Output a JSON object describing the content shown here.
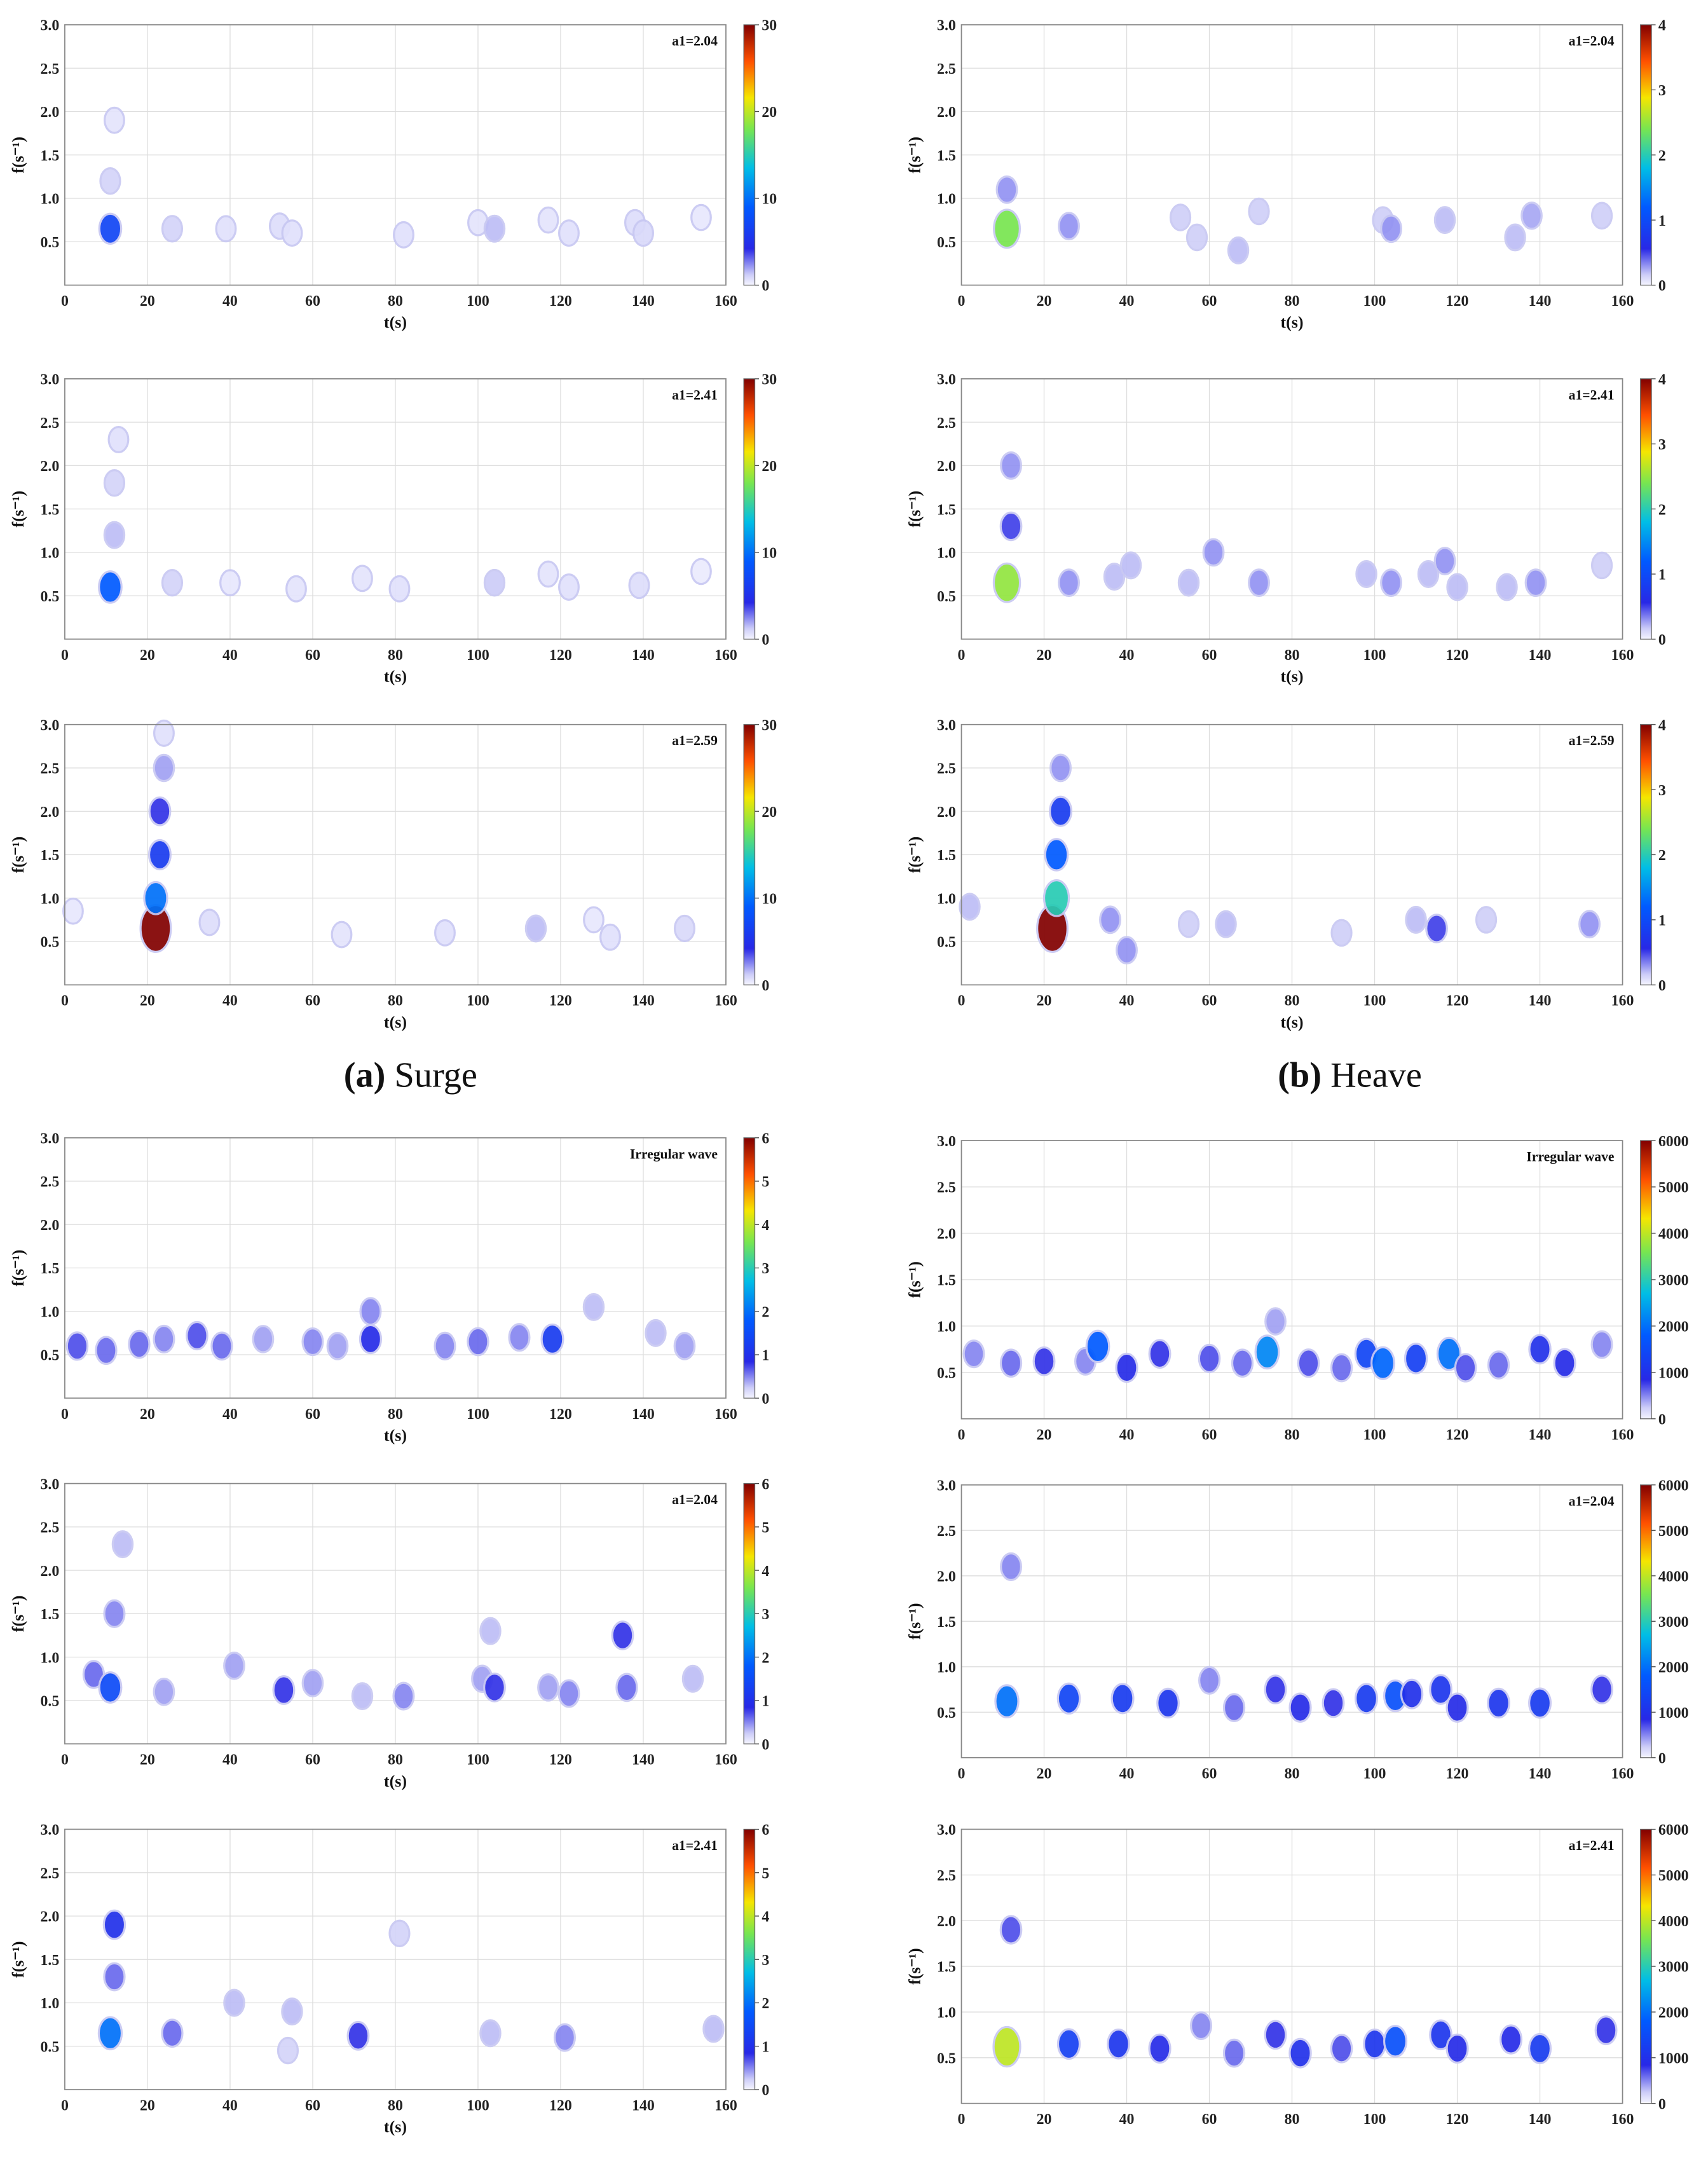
{
  "captions": [
    {
      "tag": "(a)",
      "name": "Surge"
    },
    {
      "tag": "(b)",
      "name": "Heave"
    }
  ],
  "chart_data": [
    {
      "type": "contour",
      "annotation": "a1=2.04",
      "xlabel": "t(s)",
      "ylabel": "f(s⁻¹)",
      "colormap": "jet",
      "grid": true,
      "xlim": [
        0,
        160
      ],
      "xticks": [
        0,
        20,
        40,
        60,
        80,
        100,
        120,
        140,
        160
      ],
      "ylim": [
        0,
        3
      ],
      "yticks": [
        0.5,
        {
          "value": 1,
          "label": "1.0"
        },
        1.5,
        {
          "value": 2,
          "label": "2.0"
        },
        2.5,
        {
          "value": 3,
          "label": "3.0"
        }
      ],
      "clim": [
        0,
        30
      ],
      "cticks": [
        0,
        10,
        20,
        30
      ],
      "x": [
        11,
        11,
        12,
        26,
        39,
        52,
        55,
        82,
        100,
        104,
        117,
        122,
        138,
        140,
        154
      ],
      "y": [
        0.65,
        1.2,
        1.9,
        0.65,
        0.65,
        0.68,
        0.6,
        0.58,
        0.72,
        0.65,
        0.75,
        0.6,
        0.72,
        0.6,
        0.78
      ],
      "values": [
        7,
        1,
        0.5,
        1,
        0.6,
        0.7,
        0.6,
        0.6,
        0.5,
        1.5,
        0.5,
        0.6,
        0.7,
        0.8,
        0.4
      ]
    },
    {
      "type": "contour",
      "annotation": "a1=2.41",
      "xlabel": "t(s)",
      "ylabel": "f(s⁻¹)",
      "colormap": "jet",
      "grid": true,
      "xlim": [
        0,
        160
      ],
      "xticks": [
        0,
        20,
        40,
        60,
        80,
        100,
        120,
        140,
        160
      ],
      "ylim": [
        0,
        3
      ],
      "yticks": [
        0.5,
        {
          "value": 1,
          "label": "1.0"
        },
        1.5,
        {
          "value": 2,
          "label": "2.0"
        },
        2.5,
        {
          "value": 3,
          "label": "3.0"
        }
      ],
      "clim": [
        0,
        30
      ],
      "cticks": [
        0,
        10,
        20,
        30
      ],
      "x": [
        11,
        12,
        12,
        13,
        26,
        40,
        56,
        72,
        81,
        104,
        117,
        122,
        139,
        154
      ],
      "y": [
        0.6,
        1.2,
        1.8,
        2.3,
        0.65,
        0.65,
        0.58,
        0.7,
        0.58,
        0.65,
        0.75,
        0.6,
        0.62,
        0.78
      ],
      "values": [
        9,
        1.5,
        1,
        0.6,
        1,
        0.4,
        0.5,
        0.5,
        0.6,
        1.2,
        0.5,
        0.6,
        0.7,
        0.3
      ]
    },
    {
      "type": "contour",
      "annotation": "a1=2.59",
      "xlabel": "t(s)",
      "ylabel": "f(s⁻¹)",
      "colormap": "jet",
      "grid": true,
      "xlim": [
        0,
        160
      ],
      "xticks": [
        0,
        20,
        40,
        60,
        80,
        100,
        120,
        140,
        160
      ],
      "ylim": [
        0,
        3
      ],
      "yticks": [
        0.5,
        {
          "value": 1,
          "label": "1.0"
        },
        1.5,
        {
          "value": 2,
          "label": "2.0"
        },
        2.5,
        {
          "value": 3,
          "label": "3.0"
        }
      ],
      "clim": [
        0,
        30
      ],
      "cticks": [
        0,
        10,
        20,
        30
      ],
      "x": [
        2,
        22,
        22,
        23,
        23,
        24,
        24,
        35,
        67,
        92,
        114,
        128,
        132,
        150
      ],
      "y": [
        0.85,
        0.65,
        1.0,
        1.5,
        2.0,
        2.5,
        2.9,
        0.72,
        0.58,
        0.6,
        0.65,
        0.75,
        0.55,
        0.65
      ],
      "values": [
        0.4,
        30,
        10,
        6,
        4,
        2,
        0.6,
        0.7,
        0.5,
        0.6,
        1.5,
        0.4,
        0.6,
        0.8
      ]
    },
    {
      "type": "contour",
      "annotation": "a1=2.04",
      "xlabel": "t(s)",
      "ylabel": "f(s⁻¹)",
      "colormap": "jet",
      "grid": true,
      "xlim": [
        0,
        160
      ],
      "xticks": [
        0,
        20,
        40,
        60,
        80,
        100,
        120,
        140,
        160
      ],
      "ylim": [
        0,
        3
      ],
      "yticks": [
        0.5,
        {
          "value": 1,
          "label": "1.0"
        },
        1.5,
        {
          "value": 2,
          "label": "2.0"
        },
        2.5,
        {
          "value": 3,
          "label": "3.0"
        }
      ],
      "clim": [
        0,
        4
      ],
      "cticks": [
        0,
        1,
        2,
        3,
        4
      ],
      "x": [
        11,
        11,
        26,
        53,
        57,
        67,
        72,
        102,
        104,
        117,
        134,
        138,
        155
      ],
      "y": [
        0.65,
        1.1,
        0.68,
        0.78,
        0.55,
        0.4,
        0.85,
        0.75,
        0.65,
        0.75,
        0.55,
        0.8,
        0.8
      ],
      "values": [
        2.4,
        0.3,
        0.3,
        0.15,
        0.15,
        0.2,
        0.15,
        0.15,
        0.3,
        0.2,
        0.2,
        0.25,
        0.15
      ]
    },
    {
      "type": "contour",
      "annotation": "a1=2.41",
      "xlabel": "t(s)",
      "ylabel": "f(s⁻¹)",
      "colormap": "jet",
      "grid": true,
      "xlim": [
        0,
        160
      ],
      "xticks": [
        0,
        20,
        40,
        60,
        80,
        100,
        120,
        140,
        160
      ],
      "ylim": [
        0,
        3
      ],
      "yticks": [
        0.5,
        {
          "value": 1,
          "label": "1.0"
        },
        1.5,
        {
          "value": 2,
          "label": "2.0"
        },
        2.5,
        {
          "value": 3,
          "label": "3.0"
        }
      ],
      "clim": [
        0,
        4
      ],
      "cticks": [
        0,
        1,
        2,
        3,
        4
      ],
      "x": [
        11,
        12,
        12,
        26,
        37,
        41,
        55,
        61,
        72,
        98,
        104,
        113,
        117,
        120,
        132,
        139,
        155
      ],
      "y": [
        0.65,
        1.3,
        2.0,
        0.65,
        0.72,
        0.85,
        0.65,
        1.0,
        0.65,
        0.75,
        0.65,
        0.75,
        0.9,
        0.6,
        0.6,
        0.65,
        0.85
      ],
      "values": [
        2.5,
        0.5,
        0.3,
        0.3,
        0.2,
        0.2,
        0.2,
        0.3,
        0.3,
        0.2,
        0.3,
        0.2,
        0.3,
        0.2,
        0.2,
        0.3,
        0.15
      ]
    },
    {
      "type": "contour",
      "annotation": "a1=2.59",
      "xlabel": "t(s)",
      "ylabel": "f(s⁻¹)",
      "colormap": "jet",
      "grid": true,
      "xlim": [
        0,
        160
      ],
      "xticks": [
        0,
        20,
        40,
        60,
        80,
        100,
        120,
        140,
        160
      ],
      "ylim": [
        0,
        3
      ],
      "yticks": [
        0.5,
        {
          "value": 1,
          "label": "1.0"
        },
        1.5,
        {
          "value": 2,
          "label": "2.0"
        },
        2.5,
        {
          "value": 3,
          "label": "3.0"
        }
      ],
      "clim": [
        0,
        4
      ],
      "cticks": [
        0,
        1,
        2,
        3,
        4
      ],
      "x": [
        2,
        22,
        23,
        23,
        24,
        24,
        36,
        40,
        55,
        64,
        92,
        110,
        115,
        127,
        152
      ],
      "y": [
        0.9,
        0.65,
        1.0,
        1.5,
        2.0,
        2.5,
        0.75,
        0.4,
        0.7,
        0.7,
        0.6,
        0.75,
        0.65,
        0.75,
        0.7
      ],
      "values": [
        0.2,
        4,
        2,
        1.2,
        0.8,
        0.3,
        0.3,
        0.3,
        0.15,
        0.2,
        0.15,
        0.2,
        0.5,
        0.15,
        0.3
      ]
    },
    {
      "type": "contour",
      "annotation": "Irregular wave",
      "xlabel": "t(s)",
      "ylabel": "f(s⁻¹)",
      "colormap": "jet",
      "grid": true,
      "xlim": [
        0,
        160
      ],
      "xticks": [
        0,
        20,
        40,
        60,
        80,
        100,
        120,
        140,
        160
      ],
      "ylim": [
        0,
        3
      ],
      "yticks": [
        0.5,
        {
          "value": 1,
          "label": "1.0"
        },
        1.5,
        {
          "value": 2,
          "label": "2.0"
        },
        2.5,
        {
          "value": 3,
          "label": "3.0"
        }
      ],
      "clim": [
        0,
        6
      ],
      "cticks": [
        0,
        1,
        2,
        3,
        4,
        5,
        6
      ],
      "x": [
        3,
        10,
        18,
        24,
        32,
        38,
        48,
        60,
        66,
        74,
        74,
        92,
        100,
        110,
        118,
        128,
        143,
        150
      ],
      "y": [
        0.6,
        0.55,
        0.62,
        0.68,
        0.72,
        0.6,
        0.68,
        0.65,
        0.6,
        0.68,
        1.0,
        0.6,
        0.65,
        0.7,
        0.68,
        1.05,
        0.75,
        0.6
      ],
      "values": [
        0.7,
        0.6,
        0.6,
        0.5,
        0.7,
        0.6,
        0.4,
        0.5,
        0.4,
        0.9,
        0.5,
        0.5,
        0.6,
        0.5,
        1.2,
        0.3,
        0.3,
        0.4
      ]
    },
    {
      "type": "contour",
      "annotation": "a1=2.04",
      "xlabel": "t(s)",
      "ylabel": "f(s⁻¹)",
      "colormap": "jet",
      "grid": true,
      "xlim": [
        0,
        160
      ],
      "xticks": [
        0,
        20,
        40,
        60,
        80,
        100,
        120,
        140,
        160
      ],
      "ylim": [
        0,
        3
      ],
      "yticks": [
        0.5,
        {
          "value": 1,
          "label": "1.0"
        },
        1.5,
        {
          "value": 2,
          "label": "2.0"
        },
        2.5,
        {
          "value": 3,
          "label": "3.0"
        }
      ],
      "clim": [
        0,
        6
      ],
      "cticks": [
        0,
        1,
        2,
        3,
        4,
        5,
        6
      ],
      "x": [
        7,
        11,
        12,
        14,
        24,
        41,
        53,
        60,
        72,
        82,
        101,
        104,
        103,
        117,
        122,
        135,
        136,
        152
      ],
      "y": [
        0.8,
        0.65,
        1.5,
        2.3,
        0.6,
        0.9,
        0.62,
        0.7,
        0.55,
        0.55,
        0.75,
        0.65,
        1.3,
        0.65,
        0.58,
        1.25,
        0.65,
        0.75
      ],
      "values": [
        0.6,
        1.5,
        0.5,
        0.3,
        0.4,
        0.4,
        0.8,
        0.4,
        0.3,
        0.5,
        0.4,
        0.8,
        0.3,
        0.4,
        0.5,
        0.8,
        0.6,
        0.3
      ]
    },
    {
      "type": "contour",
      "annotation": "a1=2.41",
      "xlabel": "t(s)",
      "ylabel": "f(s⁻¹)",
      "colormap": "jet",
      "grid": true,
      "xlim": [
        0,
        160
      ],
      "xticks": [
        0,
        20,
        40,
        60,
        80,
        100,
        120,
        140,
        160
      ],
      "ylim": [
        0,
        3
      ],
      "yticks": [
        0.5,
        {
          "value": 1,
          "label": "1.0"
        },
        1.5,
        {
          "value": 2,
          "label": "2.0"
        },
        2.5,
        {
          "value": 3,
          "label": "3.0"
        }
      ],
      "clim": [
        0,
        6
      ],
      "cticks": [
        0,
        1,
        2,
        3,
        4,
        5,
        6
      ],
      "x": [
        11,
        12,
        12,
        26,
        41,
        54,
        55,
        71,
        81,
        103,
        121,
        157
      ],
      "y": [
        0.65,
        1.3,
        1.9,
        0.65,
        1.0,
        0.45,
        0.9,
        0.62,
        1.8,
        0.65,
        0.6,
        0.7
      ],
      "values": [
        2,
        0.6,
        1,
        0.6,
        0.3,
        0.2,
        0.3,
        0.8,
        0.2,
        0.3,
        0.5,
        0.3
      ]
    },
    {
      "type": "contour",
      "annotation": "Irregular wave",
      "ylabel": "f(s⁻¹)",
      "colormap": "jet",
      "grid": true,
      "xlim": [
        0,
        160
      ],
      "xticks": [
        0,
        20,
        40,
        60,
        80,
        100,
        120,
        140,
        160
      ],
      "ylim": [
        0,
        3
      ],
      "yticks": [
        0.5,
        {
          "value": 1,
          "label": "1.0"
        },
        1.5,
        {
          "value": 2,
          "label": "2.0"
        },
        2.5,
        {
          "value": 3,
          "label": "3.0"
        }
      ],
      "clim": [
        0,
        6000
      ],
      "cticks": [
        0,
        1000,
        2000,
        3000,
        4000,
        5000,
        6000
      ],
      "x": [
        3,
        12,
        20,
        30,
        33,
        40,
        48,
        60,
        68,
        74,
        76,
        84,
        92,
        98,
        102,
        110,
        118,
        122,
        130,
        140,
        146,
        155
      ],
      "y": [
        0.7,
        0.6,
        0.62,
        0.62,
        0.78,
        0.55,
        0.7,
        0.65,
        0.6,
        0.72,
        1.05,
        0.6,
        0.55,
        0.7,
        0.6,
        0.65,
        0.7,
        0.55,
        0.58,
        0.75,
        0.6,
        0.8
      ],
      "values": [
        500,
        600,
        800,
        500,
        1800,
        900,
        800,
        700,
        600,
        2200,
        400,
        700,
        600,
        1400,
        1900,
        1300,
        2000,
        700,
        600,
        1000,
        900,
        500
      ]
    },
    {
      "type": "contour",
      "annotation": "a1=2.04",
      "ylabel": "f(s⁻¹)",
      "colormap": "jet",
      "grid": true,
      "xlim": [
        0,
        160
      ],
      "xticks": [
        0,
        20,
        40,
        60,
        80,
        100,
        120,
        140,
        160
      ],
      "ylim": [
        0,
        3
      ],
      "yticks": [
        0.5,
        {
          "value": 1,
          "label": "1.0"
        },
        1.5,
        {
          "value": 2,
          "label": "2.0"
        },
        2.5,
        {
          "value": 3,
          "label": "3.0"
        }
      ],
      "clim": [
        0,
        6000
      ],
      "cticks": [
        0,
        1000,
        2000,
        3000,
        4000,
        5000,
        6000
      ],
      "x": [
        11,
        12,
        26,
        39,
        50,
        60,
        66,
        76,
        82,
        90,
        98,
        105,
        109,
        116,
        120,
        130,
        140,
        155
      ],
      "y": [
        0.62,
        2.1,
        0.65,
        0.65,
        0.6,
        0.85,
        0.55,
        0.75,
        0.55,
        0.6,
        0.65,
        0.68,
        0.7,
        0.75,
        0.55,
        0.6,
        0.6,
        0.75
      ],
      "values": [
        2000,
        500,
        1400,
        1200,
        1100,
        500,
        600,
        800,
        900,
        800,
        1200,
        1600,
        1000,
        1100,
        900,
        1100,
        1200,
        800
      ]
    },
    {
      "type": "contour",
      "annotation": "a1=2.41",
      "ylabel": "f(s⁻¹)",
      "colormap": "jet",
      "grid": true,
      "xlim": [
        0,
        160
      ],
      "xticks": [
        0,
        20,
        40,
        60,
        80,
        100,
        120,
        140,
        160
      ],
      "ylim": [
        0,
        3
      ],
      "yticks": [
        0.5,
        {
          "value": 1,
          "label": "1.0"
        },
        1.5,
        {
          "value": 2,
          "label": "2.0"
        },
        2.5,
        {
          "value": 3,
          "label": "3.0"
        }
      ],
      "clim": [
        0,
        6000
      ],
      "cticks": [
        0,
        1000,
        2000,
        3000,
        4000,
        5000,
        6000
      ],
      "x": [
        11,
        12,
        26,
        38,
        48,
        58,
        66,
        76,
        82,
        92,
        100,
        105,
        116,
        120,
        133,
        140,
        156
      ],
      "y": [
        0.62,
        1.9,
        0.65,
        0.65,
        0.6,
        0.85,
        0.55,
        0.75,
        0.55,
        0.6,
        0.65,
        0.68,
        0.75,
        0.6,
        0.7,
        0.6,
        0.8
      ],
      "values": [
        4000,
        700,
        1300,
        1100,
        900,
        500,
        600,
        800,
        1000,
        700,
        1100,
        1600,
        1100,
        900,
        900,
        1200,
        800
      ]
    }
  ]
}
